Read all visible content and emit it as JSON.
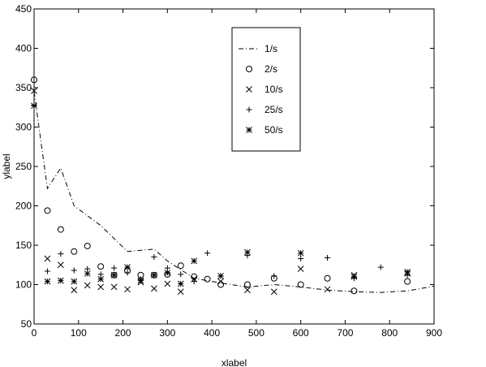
{
  "chart_data": {
    "type": "scatter",
    "xlabel": "xlabel",
    "ylabel": "ylabel",
    "xlim": [
      0,
      900
    ],
    "ylim": [
      50,
      450
    ],
    "xticks": [
      0,
      100,
      200,
      300,
      400,
      500,
      600,
      700,
      800,
      900
    ],
    "yticks": [
      50,
      100,
      150,
      200,
      250,
      300,
      350,
      400,
      450
    ],
    "grid": false,
    "legend_position": "top-right",
    "series": [
      {
        "name": "1/s",
        "style": "dashdot-line",
        "points": [
          [
            0,
            345
          ],
          [
            30,
            222
          ],
          [
            60,
            248
          ],
          [
            90,
            200
          ],
          [
            150,
            175
          ],
          [
            210,
            142
          ],
          [
            270,
            145
          ],
          [
            300,
            130
          ],
          [
            360,
            108
          ],
          [
            420,
            102
          ],
          [
            480,
            97
          ],
          [
            540,
            100
          ],
          [
            600,
            97
          ],
          [
            660,
            93
          ],
          [
            720,
            91
          ],
          [
            780,
            90
          ],
          [
            840,
            92
          ],
          [
            900,
            98
          ]
        ]
      },
      {
        "name": "2/s",
        "style": "circle",
        "points": [
          [
            0,
            360
          ],
          [
            30,
            194
          ],
          [
            60,
            170
          ],
          [
            90,
            142
          ],
          [
            120,
            149
          ],
          [
            150,
            123
          ],
          [
            180,
            112
          ],
          [
            210,
            118
          ],
          [
            240,
            112
          ],
          [
            270,
            112
          ],
          [
            300,
            113
          ],
          [
            330,
            124
          ],
          [
            360,
            110
          ],
          [
            390,
            107
          ],
          [
            420,
            100
          ],
          [
            480,
            100
          ],
          [
            540,
            108
          ],
          [
            600,
            100
          ],
          [
            660,
            108
          ],
          [
            720,
            92
          ],
          [
            840,
            104
          ]
        ]
      },
      {
        "name": "10/s",
        "style": "x",
        "points": [
          [
            0,
            346
          ],
          [
            30,
            133
          ],
          [
            60,
            125
          ],
          [
            90,
            93
          ],
          [
            120,
            99
          ],
          [
            150,
            97
          ],
          [
            180,
            97
          ],
          [
            210,
            94
          ],
          [
            240,
            103
          ],
          [
            270,
            95
          ],
          [
            300,
            101
          ],
          [
            330,
            91
          ],
          [
            360,
            107
          ],
          [
            420,
            104
          ],
          [
            480,
            93
          ],
          [
            540,
            91
          ],
          [
            600,
            120
          ],
          [
            660,
            94
          ],
          [
            720,
            112
          ],
          [
            840,
            114
          ]
        ]
      },
      {
        "name": "25/s",
        "style": "plus",
        "points": [
          [
            0,
            328
          ],
          [
            30,
            117
          ],
          [
            60,
            139
          ],
          [
            90,
            118
          ],
          [
            120,
            120
          ],
          [
            150,
            113
          ],
          [
            180,
            121
          ],
          [
            210,
            115
          ],
          [
            240,
            107
          ],
          [
            270,
            135
          ],
          [
            300,
            121
          ],
          [
            330,
            113
          ],
          [
            360,
            104
          ],
          [
            390,
            140
          ],
          [
            420,
            111
          ],
          [
            480,
            137
          ],
          [
            540,
            111
          ],
          [
            600,
            133
          ],
          [
            660,
            134
          ],
          [
            720,
            108
          ],
          [
            780,
            122
          ],
          [
            840,
            112
          ]
        ]
      },
      {
        "name": "50/s",
        "style": "asterisk",
        "points": [
          [
            0,
            327
          ],
          [
            30,
            104
          ],
          [
            60,
            105
          ],
          [
            90,
            104
          ],
          [
            120,
            114
          ],
          [
            150,
            107
          ],
          [
            180,
            112
          ],
          [
            210,
            122
          ],
          [
            240,
            105
          ],
          [
            270,
            112
          ],
          [
            300,
            115
          ],
          [
            330,
            101
          ],
          [
            360,
            130
          ],
          [
            420,
            111
          ],
          [
            480,
            141
          ],
          [
            600,
            140
          ],
          [
            720,
            110
          ],
          [
            840,
            116
          ]
        ]
      }
    ]
  }
}
